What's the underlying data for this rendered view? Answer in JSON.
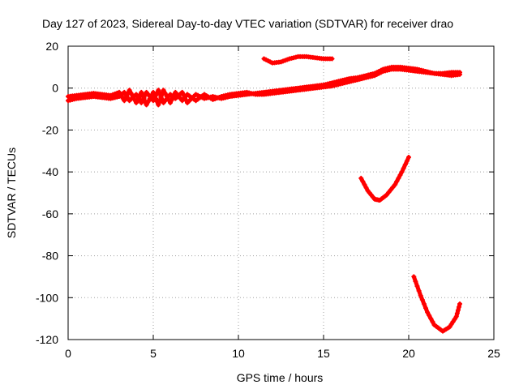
{
  "chart_data": {
    "type": "scatter",
    "title": "Day 127 of 2023, Sidereal Day-to-day VTEC variation (SDTVAR) for receiver drao",
    "xlabel": "GPS time / hours",
    "ylabel": "SDTVAR / TECUs",
    "xlim": [
      0,
      25
    ],
    "ylim": [
      -120,
      20
    ],
    "xticks": [
      0,
      5,
      10,
      15,
      20,
      25
    ],
    "yticks": [
      20,
      0,
      -20,
      -40,
      -60,
      -80,
      -100,
      -120
    ],
    "grid": true,
    "marker_color": "#ff0000",
    "series": [
      {
        "name": "main-band-a",
        "points": [
          [
            0,
            -6
          ],
          [
            0.5,
            -5
          ],
          [
            1,
            -4.5
          ],
          [
            1.5,
            -4
          ],
          [
            2,
            -4.5
          ],
          [
            2.5,
            -5
          ],
          [
            3,
            -4
          ],
          [
            3.3,
            -2
          ],
          [
            3.6,
            -6
          ],
          [
            4,
            -3
          ],
          [
            4.3,
            -7
          ],
          [
            4.6,
            -2
          ],
          [
            5,
            -6
          ],
          [
            5.3,
            -1
          ],
          [
            5.6,
            -7
          ],
          [
            6,
            -3
          ],
          [
            6.3,
            -5
          ],
          [
            6.7,
            -2
          ],
          [
            7,
            -7
          ],
          [
            7.5,
            -3
          ],
          [
            8,
            -5
          ],
          [
            8.5,
            -4
          ],
          [
            9,
            -5
          ],
          [
            9.5,
            -4
          ],
          [
            10,
            -3.5
          ],
          [
            10.5,
            -3
          ],
          [
            11,
            -2.5
          ],
          [
            11.5,
            -2
          ],
          [
            12,
            -1.5
          ],
          [
            12.5,
            -1
          ],
          [
            13,
            -0.5
          ],
          [
            13.5,
            0
          ],
          [
            14,
            0.5
          ],
          [
            14.5,
            1
          ],
          [
            15,
            1.5
          ],
          [
            15.5,
            2.5
          ],
          [
            16,
            3.5
          ],
          [
            16.5,
            4.5
          ],
          [
            17,
            5
          ],
          [
            17.5,
            6
          ],
          [
            18,
            7
          ],
          [
            18.5,
            9
          ],
          [
            19,
            10
          ],
          [
            19.5,
            10
          ],
          [
            20,
            9.5
          ],
          [
            20.5,
            9
          ],
          [
            21,
            8
          ],
          [
            21.5,
            7
          ],
          [
            22,
            6.5
          ],
          [
            22.5,
            6
          ],
          [
            23,
            6.5
          ]
        ]
      },
      {
        "name": "main-band-b",
        "points": [
          [
            0,
            -4
          ],
          [
            0.5,
            -3.5
          ],
          [
            1,
            -3
          ],
          [
            1.5,
            -2.5
          ],
          [
            2,
            -3
          ],
          [
            2.5,
            -3.5
          ],
          [
            3,
            -2
          ],
          [
            3.3,
            -6
          ],
          [
            3.6,
            -1
          ],
          [
            4,
            -7
          ],
          [
            4.3,
            -2
          ],
          [
            4.6,
            -8
          ],
          [
            5,
            -2
          ],
          [
            5.3,
            -8
          ],
          [
            5.6,
            -1
          ],
          [
            6,
            -7
          ],
          [
            6.3,
            -2
          ],
          [
            6.7,
            -6
          ],
          [
            7,
            -3
          ],
          [
            7.5,
            -6
          ],
          [
            8,
            -3
          ],
          [
            8.5,
            -5.5
          ],
          [
            9,
            -4
          ],
          [
            9.5,
            -3
          ],
          [
            10,
            -2.5
          ],
          [
            10.5,
            -2
          ],
          [
            11,
            -3
          ],
          [
            11.5,
            -3
          ],
          [
            12,
            -2.5
          ],
          [
            12.5,
            -2
          ],
          [
            13,
            -1.5
          ],
          [
            13.5,
            -1
          ],
          [
            14,
            -0.5
          ],
          [
            14.5,
            0
          ],
          [
            15,
            0.5
          ],
          [
            15.5,
            1
          ],
          [
            16,
            2
          ],
          [
            16.5,
            3
          ],
          [
            17,
            4
          ],
          [
            17.5,
            5
          ],
          [
            18,
            6
          ],
          [
            18.5,
            8
          ],
          [
            19,
            9
          ],
          [
            19.5,
            9
          ],
          [
            20,
            8.5
          ],
          [
            20.5,
            8
          ],
          [
            21,
            7.5
          ],
          [
            21.5,
            7
          ],
          [
            22,
            7
          ],
          [
            22.5,
            7.5
          ],
          [
            23,
            7.5
          ]
        ]
      },
      {
        "name": "upper-arc",
        "points": [
          [
            11.5,
            14
          ],
          [
            12,
            12
          ],
          [
            12.5,
            12.5
          ],
          [
            13,
            14
          ],
          [
            13.5,
            15
          ],
          [
            14,
            15
          ],
          [
            14.5,
            14.5
          ],
          [
            15,
            14
          ],
          [
            15.5,
            14
          ]
        ]
      },
      {
        "name": "mid-arc",
        "points": [
          [
            17.2,
            -43
          ],
          [
            17.6,
            -49
          ],
          [
            18,
            -53
          ],
          [
            18.3,
            -53.5
          ],
          [
            18.7,
            -51
          ],
          [
            19.2,
            -46
          ],
          [
            19.6,
            -40
          ],
          [
            20,
            -33
          ]
        ]
      },
      {
        "name": "low-arc",
        "points": [
          [
            20.3,
            -90
          ],
          [
            20.7,
            -99
          ],
          [
            21.1,
            -107
          ],
          [
            21.5,
            -113
          ],
          [
            22,
            -116
          ],
          [
            22.4,
            -114
          ],
          [
            22.8,
            -109
          ],
          [
            23,
            -103
          ]
        ]
      }
    ]
  }
}
